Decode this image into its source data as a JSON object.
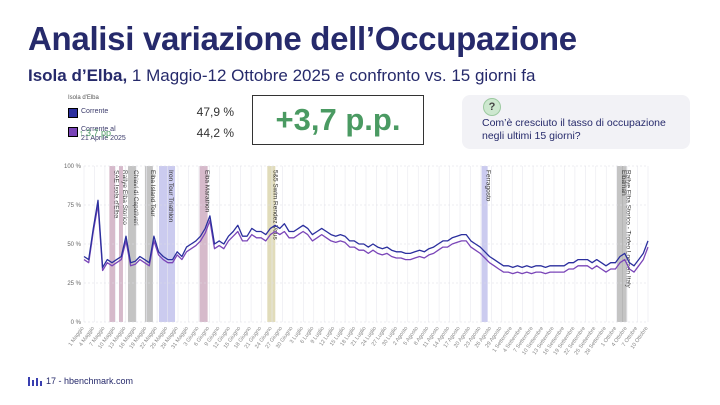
{
  "title": "Analisi variazione dell’Occupazione",
  "subtitle_bold": "Isola d’Elba,",
  "subtitle_rest": " 1 Maggio-12 Ottobre 2025 e confronto vs. 15 giorni fa",
  "big_number": "+3,7 p.p.",
  "callout": {
    "icon": "question-icon",
    "text": "Com’è cresciuto il tasso di occupazione negli ultimi 15 giorni?"
  },
  "legend": {
    "heading": "Isola d'Elba",
    "current_label": "Corrente",
    "current_value": "47,9 %",
    "compare_label_1": "Corrente al",
    "compare_label_2": "21 Aprile 2025",
    "compare_value": "44,2 %",
    "delta": "↑ 3,7 pp"
  },
  "colors": {
    "current": "#2b2f9e",
    "comparison": "#7a45b8",
    "accent_green": "#4a9a62",
    "title": "#262a6b"
  },
  "footer": {
    "text": "17 - hbenchmark.com",
    "icon": "hbenchmark-logo-icon"
  },
  "chart_data": {
    "type": "line",
    "ylim": [
      0,
      100
    ],
    "y_ticks": [
      "0 %",
      "25 %",
      "50 %",
      "75 %",
      "100 %"
    ],
    "grid": true,
    "x_tick_labels": [
      "1 Maggio",
      "4 Maggio",
      "7 Maggio",
      "10 Maggio",
      "13 Maggio",
      "16 Maggio",
      "19 Maggio",
      "22 Maggio",
      "25 Maggio",
      "28 Maggio",
      "31 Maggio",
      "3 Giugno",
      "6 Giugno",
      "9 Giugno",
      "12 Giugno",
      "15 Giugno",
      "18 Giugno",
      "21 Giugno",
      "24 Giugno",
      "27 Giugno",
      "30 Giugno",
      "3 Luglio",
      "6 Luglio",
      "9 Luglio",
      "12 Luglio",
      "15 Luglio",
      "18 Luglio",
      "21 Luglio",
      "24 Luglio",
      "27 Luglio",
      "30 Luglio",
      "2 Agosto",
      "5 Agosto",
      "8 Agosto",
      "11 Agosto",
      "14 Agosto",
      "17 Agosto",
      "20 Agosto",
      "23 Agosto",
      "26 Agosto",
      "29 Agosto",
      "1 Settembre",
      "4 Settembre",
      "7 Settembre",
      "10 Settembre",
      "13 Settembre",
      "16 Settembre",
      "19 Settembre",
      "22 Settembre",
      "25 Settembre",
      "28 Settembre",
      "1 Ottobre",
      "4 Ottobre",
      "7 Ottobre",
      "10 Ottobre"
    ],
    "series": [
      {
        "name": "Corrente",
        "color": "#2b2f9e",
        "values": [
          42,
          40,
          60,
          78,
          35,
          40,
          38,
          40,
          42,
          55,
          38,
          39,
          42,
          40,
          38,
          55,
          45,
          42,
          40,
          40,
          45,
          42,
          48,
          50,
          52,
          55,
          60,
          68,
          50,
          52,
          50,
          55,
          58,
          62,
          55,
          55,
          60,
          58,
          58,
          56,
          60,
          62,
          60,
          63,
          58,
          58,
          60,
          62,
          60,
          56,
          58,
          60,
          58,
          56,
          55,
          56,
          55,
          52,
          52,
          50,
          50,
          48,
          50,
          48,
          47,
          48,
          46,
          45,
          45,
          44,
          44,
          45,
          46,
          45,
          47,
          48,
          50,
          52,
          52,
          54,
          55,
          56,
          56,
          52,
          50,
          48,
          45,
          42,
          40,
          38,
          36,
          36,
          35,
          36,
          35,
          36,
          35,
          36,
          36,
          35,
          36,
          36,
          36,
          36,
          38,
          38,
          40,
          40,
          40,
          38,
          40,
          38,
          36,
          38,
          38,
          42,
          44,
          38,
          36,
          40,
          44,
          52
        ]
      },
      {
        "name": "Corrente al 21 Aprile 2025",
        "color": "#7a45b8",
        "values": [
          40,
          38,
          58,
          75,
          33,
          38,
          36,
          38,
          40,
          52,
          36,
          37,
          40,
          38,
          36,
          52,
          43,
          40,
          38,
          38,
          43,
          40,
          45,
          47,
          49,
          52,
          57,
          65,
          47,
          49,
          47,
          52,
          55,
          58,
          52,
          52,
          56,
          54,
          54,
          52,
          56,
          58,
          56,
          58,
          54,
          54,
          56,
          58,
          56,
          52,
          54,
          56,
          54,
          52,
          51,
          52,
          51,
          48,
          48,
          46,
          46,
          44,
          46,
          44,
          43,
          44,
          42,
          41,
          41,
          40,
          40,
          41,
          42,
          41,
          43,
          44,
          46,
          48,
          48,
          50,
          51,
          52,
          52,
          48,
          46,
          44,
          41,
          38,
          36,
          34,
          32,
          32,
          31,
          32,
          31,
          32,
          31,
          32,
          32,
          31,
          32,
          32,
          32,
          32,
          34,
          34,
          36,
          36,
          36,
          34,
          36,
          34,
          32,
          34,
          34,
          38,
          40,
          34,
          32,
          36,
          40,
          48
        ]
      }
    ],
    "events": [
      {
        "label": "SAE Isola d'Elba",
        "color": "#8a3a6a"
      },
      {
        "label": "Rallye Elba Storico",
        "color": "#8a3a6a"
      },
      {
        "label": "Chiavi di Capoliveri",
        "color": "#555555"
      },
      {
        "label": "Elba Island Tour",
        "color": "#555555"
      },
      {
        "label": "Iron Tour Triathlon",
        "color": "#6a6ad0"
      },
      {
        "label": "Elba Marathon",
        "color": "#8a3a6a"
      },
      {
        "label": "5&5 Swim Rendez Vous",
        "color": "#a89a3a"
      },
      {
        "label": "Ferragosto",
        "color": "#6a6ad0"
      },
      {
        "label": "Elbaman",
        "color": "#555555"
      },
      {
        "label": "Rallye Elba Storico - Trofeo Locman Italy",
        "color": "#555555"
      }
    ]
  }
}
